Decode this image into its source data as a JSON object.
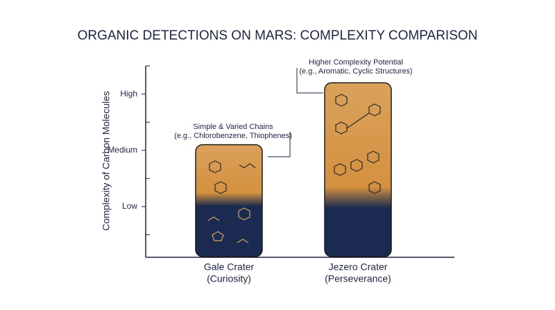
{
  "chart_data": {
    "type": "bar",
    "title": "ORGANIC DETECTIONS ON MARS: COMPLEXITY COMPARISON",
    "y_label": "Complexity of Carbon Molecules",
    "categories": [
      "Gale Crater",
      "Jezero Crater"
    ],
    "missions": [
      "(Curiosity)",
      "(Perseverance)"
    ],
    "values": [
      2.1,
      3.2
    ],
    "color": "#d4913f",
    "base_color": "#1a2a50",
    "ylim": [
      0.1,
      3.5
    ],
    "yticks": [
      {
        "value": 1,
        "label": "Low"
      },
      {
        "value": 2,
        "label": "Medium"
      },
      {
        "value": 3,
        "label": "High"
      }
    ],
    "minor_yticks": [
      0.5,
      1.5,
      2.5,
      3.5
    ],
    "annotations": [
      {
        "title": "Simple & Varied Chains",
        "subtitle": "(e.g., Chlorobenzene, Thiophenes)"
      },
      {
        "title": "Higher Complexity Potential",
        "subtitle": "(e.g., Aromatic, Cyclic Structures)"
      }
    ]
  }
}
